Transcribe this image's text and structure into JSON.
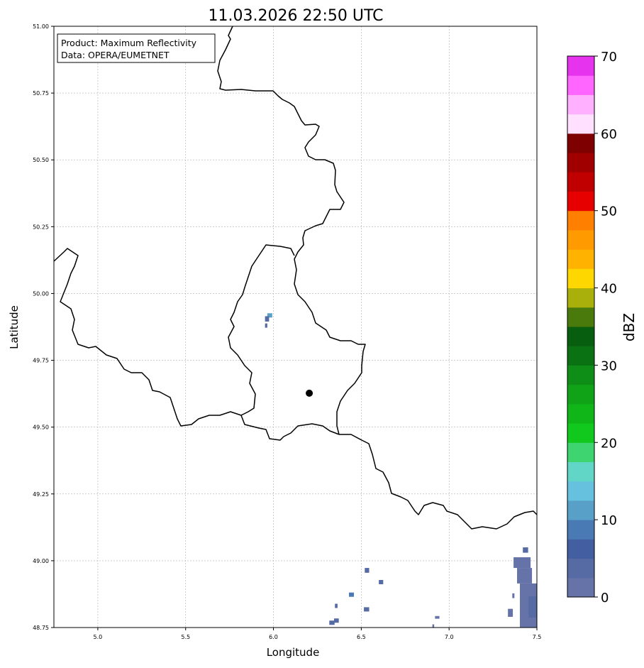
{
  "title": "11.03.2026 22:50 UTC",
  "info_box": {
    "line1": "Product: Maximum Reflectivity",
    "line2": "Data: OPERA/EUMETNET"
  },
  "axes": {
    "xlabel": "Longitude",
    "ylabel": "Latitude",
    "xlim": [
      4.75,
      7.5
    ],
    "ylim": [
      48.75,
      51.0
    ],
    "xticks": [
      5.0,
      5.5,
      6.0,
      6.5,
      7.0,
      7.5
    ],
    "xtick_labels": [
      "5.0",
      "5.5",
      "6.0",
      "6.5",
      "7.0",
      "7.5"
    ],
    "yticks": [
      48.75,
      49.0,
      49.25,
      49.5,
      49.75,
      50.0,
      50.25,
      50.5,
      50.75,
      51.0
    ],
    "ytick_labels": [
      "48.75",
      "49.00",
      "49.25",
      "49.50",
      "49.75",
      "50.00",
      "50.25",
      "50.50",
      "50.75",
      "51.00"
    ],
    "grid": true
  },
  "colorbar": {
    "label": "dBZ",
    "range": [
      0,
      70
    ],
    "step": 2.5,
    "ticks": [
      "0",
      "10",
      "20",
      "30",
      "40",
      "50",
      "60",
      "70"
    ],
    "colors": [
      "#6573a8",
      "#566aa3",
      "#445ea2",
      "#4a7ab4",
      "#58a0c8",
      "#65c1de",
      "#62d6c6",
      "#3ed46f",
      "#11c81c",
      "#10b518",
      "#10a318",
      "#0e8d17",
      "#0a7213",
      "#075e0f",
      "#4a7a0c",
      "#aab00b",
      "#ffd700",
      "#ffb300",
      "#ff9a00",
      "#ff7f00",
      "#e60000",
      "#c00000",
      "#a00000",
      "#7e0000",
      "#ffe0ff",
      "#ffb0ff",
      "#ff66ff",
      "#e633ee"
    ]
  },
  "marker": {
    "lon": 6.204,
    "lat": 49.627,
    "color": "#000000"
  },
  "radar_cells": [
    {
      "lon": [
        5.965,
        5.993
      ],
      "lat": [
        49.91,
        49.926
      ],
      "dbz": 11
    },
    {
      "lon": [
        5.952,
        5.975
      ],
      "lat": [
        49.895,
        49.915
      ],
      "dbz": 4
    },
    {
      "lon": [
        5.952,
        5.965
      ],
      "lat": [
        49.872,
        49.888
      ],
      "dbz": 4
    },
    {
      "lon": [
        6.52,
        6.545
      ],
      "lat": [
        48.955,
        48.973
      ],
      "dbz": 3
    },
    {
      "lon": [
        6.6,
        6.625
      ],
      "lat": [
        48.912,
        48.928
      ],
      "dbz": 3
    },
    {
      "lon": [
        6.43,
        6.458
      ],
      "lat": [
        48.865,
        48.881
      ],
      "dbz": 9
    },
    {
      "lon": [
        6.35,
        6.365
      ],
      "lat": [
        48.823,
        48.839
      ],
      "dbz": 3
    },
    {
      "lon": [
        6.515,
        6.545
      ],
      "lat": [
        48.81,
        48.826
      ],
      "dbz": 4
    },
    {
      "lon": [
        6.345,
        6.372
      ],
      "lat": [
        48.768,
        48.784
      ],
      "dbz": 3
    },
    {
      "lon": [
        6.318,
        6.348
      ],
      "lat": [
        48.76,
        48.776
      ],
      "dbz": 3
    },
    {
      "lon": [
        6.92,
        6.945
      ],
      "lat": [
        48.783,
        48.793
      ],
      "dbz": 2
    },
    {
      "lon": [
        6.905,
        6.915
      ],
      "lat": [
        48.75,
        48.762
      ],
      "dbz": 2
    },
    {
      "lon": [
        7.335,
        7.363
      ],
      "lat": [
        48.79,
        48.82
      ],
      "dbz": 2
    },
    {
      "lon": [
        7.36,
        7.372
      ],
      "lat": [
        48.86,
        48.878
      ],
      "dbz": 2
    },
    {
      "lon": [
        7.42,
        7.45
      ],
      "lat": [
        49.03,
        49.05
      ],
      "dbz": 3
    },
    {
      "lon": [
        7.367,
        7.464
      ],
      "lat": [
        48.973,
        49.013
      ],
      "dbz": 2
    },
    {
      "lon": [
        7.387,
        7.472
      ],
      "lat": [
        48.915,
        48.973
      ],
      "dbz": 2
    },
    {
      "lon": [
        7.403,
        7.5
      ],
      "lat": [
        48.75,
        48.915
      ],
      "dbz": 2
    },
    {
      "lon": [
        7.452,
        7.5
      ],
      "lat": [
        48.787,
        48.867
      ],
      "dbz": 4
    }
  ]
}
